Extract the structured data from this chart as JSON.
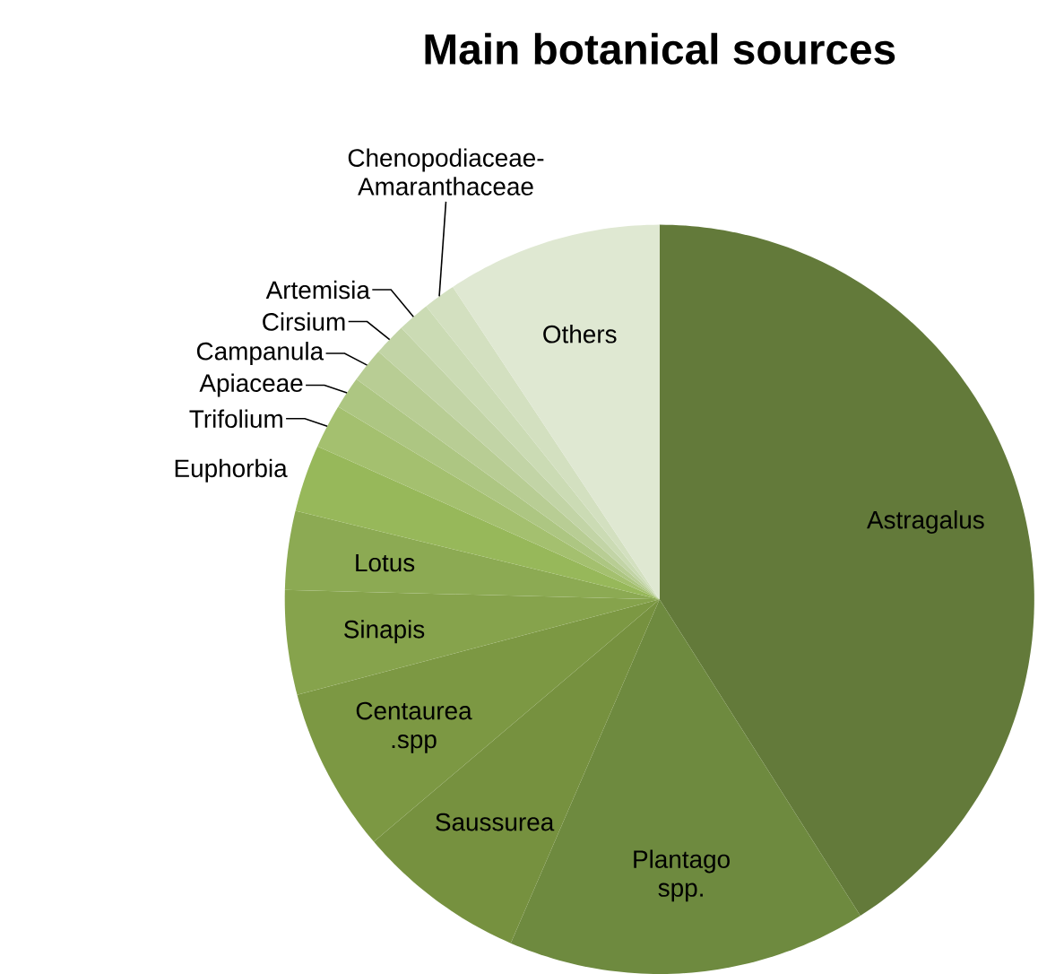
{
  "chart_data": {
    "type": "pie",
    "title": "Main botanical sources",
    "categories": [
      "Astragalus",
      "Plantago spp.",
      "Saussurea",
      "Centaurea .spp",
      "Sinapis",
      "Lotus",
      "Euphorbia",
      "Trifolium",
      "Apiaceae",
      "Campanula",
      "Cirsium",
      "Artemisia",
      "Chenopodiaceae-Amaranthaceae",
      "Others"
    ],
    "values": [
      41.0,
      15.5,
      7.3,
      7.1,
      4.5,
      3.4,
      2.9,
      1.9,
      1.4,
      1.5,
      1.4,
      1.4,
      1.4,
      9.3
    ],
    "colors": [
      "#637a3a",
      "#6e8a3f",
      "#76913f",
      "#7c9843",
      "#86a34c",
      "#8caa53",
      "#97b85a",
      "#a4c06f",
      "#adc682",
      "#b8cd94",
      "#c2d4a6",
      "#cbdbb4",
      "#d3e0c0",
      "#dfe8d2"
    ]
  }
}
